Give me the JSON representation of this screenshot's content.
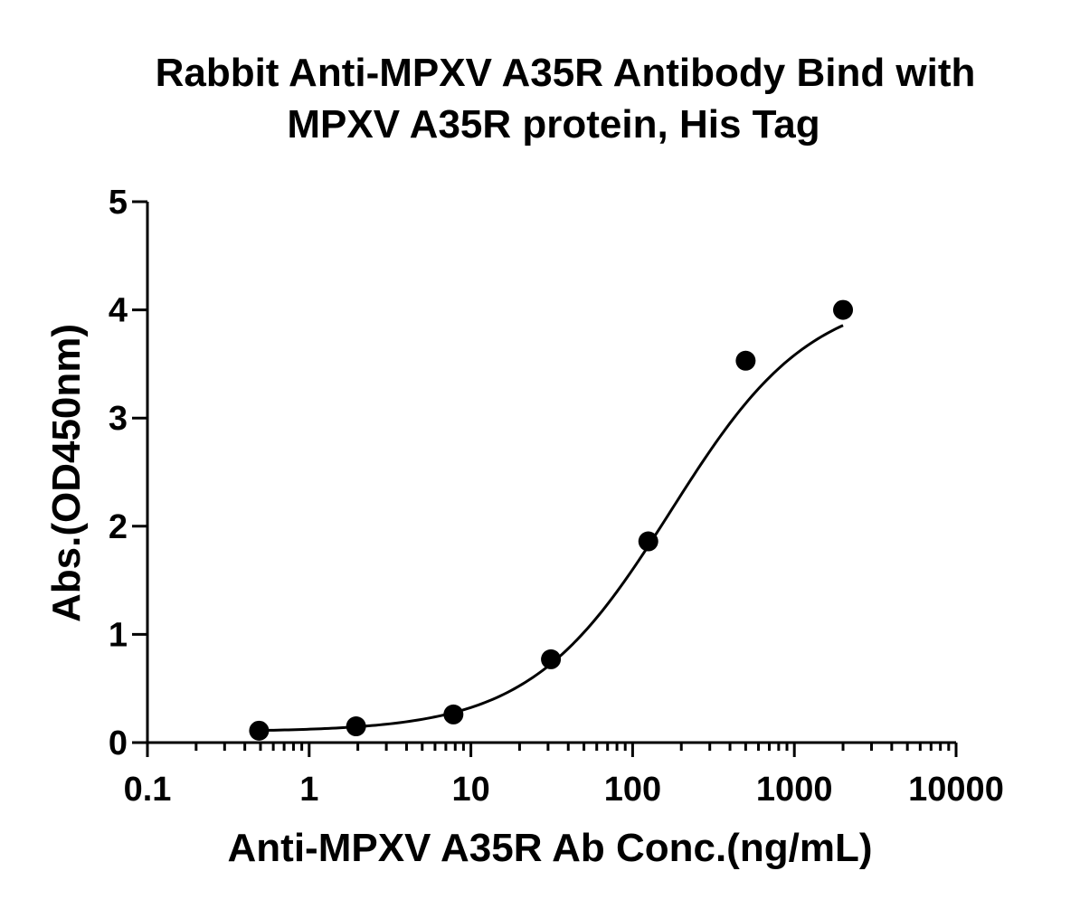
{
  "chart_data": {
    "type": "scatter",
    "title_lines": [
      "Rabbit Anti-MPXV A35R Antibody Bind with",
      "MPXV A35R protein, His Tag"
    ],
    "xlabel": "Anti-MPXV A35R Ab Conc.(ng/mL)",
    "ylabel": "Abs.(OD450nm)",
    "x_scale": "log",
    "xlim": [
      0.1,
      10000
    ],
    "ylim": [
      0,
      5
    ],
    "x_ticks": [
      0.1,
      1,
      10,
      100,
      1000,
      10000
    ],
    "x_tick_labels": [
      "0.1",
      "1",
      "10",
      "100",
      "1000",
      "10000"
    ],
    "y_ticks": [
      0,
      1,
      2,
      3,
      4,
      5
    ],
    "y_tick_labels": [
      "0",
      "1",
      "2",
      "3",
      "4",
      "5"
    ],
    "grid": false,
    "series": [
      {
        "x": [
          0.49,
          1.95,
          7.8,
          31.25,
          125,
          500,
          2000
        ],
        "y": [
          0.11,
          0.15,
          0.26,
          0.77,
          1.86,
          3.53,
          4.0
        ],
        "color": "#000000",
        "fit": "4PL sigmoidal curve"
      }
    ]
  }
}
